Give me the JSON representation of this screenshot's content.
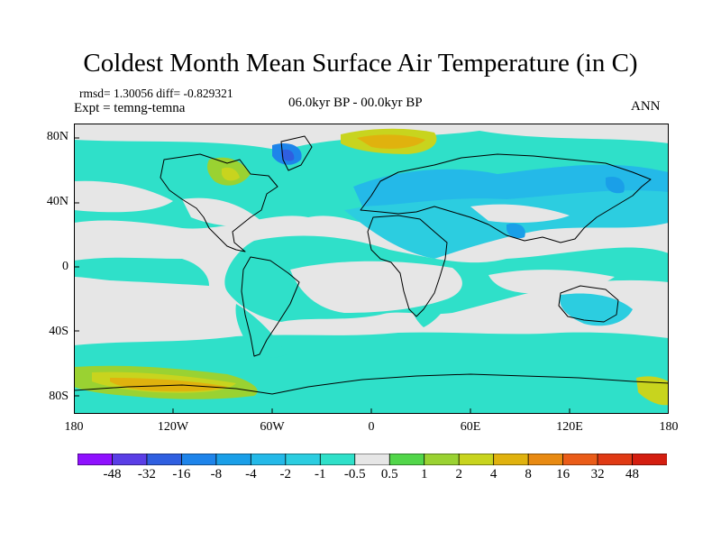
{
  "title": "Coldest Month Mean Surface Air Temperature (in C)",
  "stats": "rmsd= 1.30056  diff= -0.829321",
  "experiment": "Expt = temng-temna",
  "period": "06.0kyr BP - 00.0kyr BP",
  "season": "ANN",
  "y_axis": {
    "ticks": [
      "80N",
      "40N",
      "0",
      "40S",
      "80S"
    ]
  },
  "x_axis": {
    "ticks": [
      "180",
      "120W",
      "60W",
      "0",
      "60E",
      "120E",
      "180"
    ]
  },
  "colorbar": {
    "labels": [
      "-48",
      "-32",
      "-16",
      "-8",
      "-4",
      "-2",
      "-1",
      "-0.5",
      "0.5",
      "1",
      "2",
      "4",
      "8",
      "16",
      "32",
      "48"
    ],
    "colors": [
      "#8f11ff",
      "#5a3ee6",
      "#2f5fe0",
      "#1e84ea",
      "#1a9fe8",
      "#24b9e8",
      "#2ccde0",
      "#2fe0c9",
      "#e6e6e6",
      "#52d64a",
      "#9ad232",
      "#c8d41e",
      "#e0b20e",
      "#e88a12",
      "#ea5c18",
      "#e03a14",
      "#d41e10"
    ]
  },
  "map": {
    "background_color": "#e6e6e6",
    "coastline_color": "#000000",
    "dominant_colors": [
      "#2fe0c9",
      "#2ccde0",
      "#24b9e8",
      "#9ad232",
      "#e0b20e"
    ]
  }
}
